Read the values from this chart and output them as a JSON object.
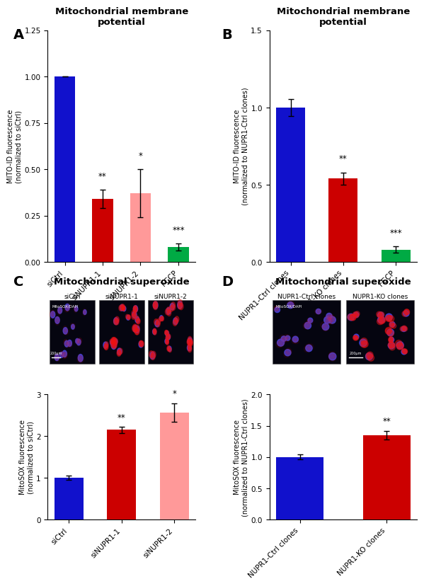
{
  "panel_A": {
    "title": "Mitochondrial membrane\npotential",
    "categories": [
      "siCtrl",
      "siNUPR1-1",
      "siNUPR1-2",
      "FCCP"
    ],
    "values": [
      1.0,
      0.34,
      0.37,
      0.08
    ],
    "errors": [
      0.0,
      0.05,
      0.13,
      0.02
    ],
    "colors": [
      "#1111CC",
      "#CC0000",
      "#FF9999",
      "#00AA44"
    ],
    "ylabel": "MITO-ID fluorescence\n(normalized to siCtrl)",
    "ylim": [
      0,
      1.25
    ],
    "yticks": [
      0.0,
      0.25,
      0.5,
      0.75,
      1.0,
      1.25
    ],
    "significance": [
      "",
      "**",
      "*",
      "***"
    ]
  },
  "panel_B": {
    "title": "Mitochondrial membrane\npotential",
    "categories": [
      "NUPR1-Ctrl clones",
      "NUPR1-KO clones",
      "FCCP"
    ],
    "values": [
      1.0,
      0.54,
      0.08
    ],
    "errors": [
      0.055,
      0.04,
      0.02
    ],
    "colors": [
      "#1111CC",
      "#CC0000",
      "#00AA44"
    ],
    "ylabel": "MITO-ID fluorescence\n(normalized to NUPR1-Ctrl clones)",
    "ylim": [
      0,
      1.5
    ],
    "yticks": [
      0.0,
      0.5,
      1.0,
      1.5
    ],
    "significance": [
      "",
      "**",
      "***"
    ]
  },
  "panel_C": {
    "title": "Mitochondrial superoxide",
    "img_labels": [
      "siCtrl",
      "siNUPR1-1",
      "siNUPR1-2"
    ],
    "categories": [
      "siCtrl",
      "siNUPR1-1",
      "siNUPR1-2"
    ],
    "values": [
      1.0,
      2.15,
      2.57
    ],
    "errors": [
      0.05,
      0.07,
      0.22
    ],
    "colors": [
      "#1111CC",
      "#CC0000",
      "#FF9999"
    ],
    "ylabel": "MitoSOX fluorescence\n(normalized to siCtrl)",
    "ylim": [
      0,
      3
    ],
    "yticks": [
      0,
      1,
      2,
      3
    ],
    "significance": [
      "",
      "**",
      "*"
    ]
  },
  "panel_D": {
    "title": "Mitochondrial superoxide",
    "img_labels": [
      "NUPR1-Ctrl clones",
      "NUPR1-KO clones"
    ],
    "categories": [
      "NUPR1-Ctrl clones",
      "NUPR1-KO clones"
    ],
    "values": [
      1.0,
      1.35
    ],
    "errors": [
      0.04,
      0.07
    ],
    "colors": [
      "#1111CC",
      "#CC0000"
    ],
    "ylabel": "MitoSOX fluorescence\n(normalized to NUPR1-Ctrl clones)",
    "ylim": [
      0,
      2.0
    ],
    "yticks": [
      0.0,
      0.5,
      1.0,
      1.5,
      2.0
    ],
    "significance": [
      "",
      "**"
    ]
  },
  "background_color": "#FFFFFF",
  "panel_label_fontsize": 14,
  "title_fontsize": 9.5,
  "tick_fontsize": 7.5,
  "ylabel_fontsize": 7.0,
  "xlabel_fontsize": 7.5,
  "sig_fontsize": 8.5
}
